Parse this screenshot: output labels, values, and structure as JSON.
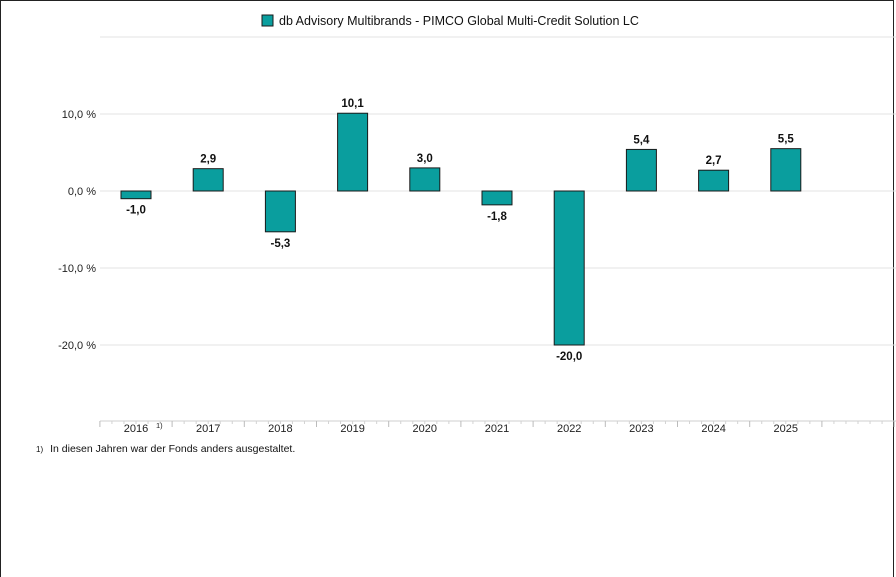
{
  "chart_data": {
    "type": "bar",
    "legend": {
      "label": "db Advisory Multibrands - PIMCO Global Multi-Credit Solution LC",
      "position": "top"
    },
    "categories": [
      "2016",
      "2017",
      "2018",
      "2019",
      "2020",
      "2021",
      "2022",
      "2023",
      "2024",
      "2025"
    ],
    "category_footnote_marks": [
      "1)",
      "",
      "",
      "",
      "",
      "",
      "",
      "",
      "",
      ""
    ],
    "values": [
      -1.0,
      2.9,
      -5.3,
      10.1,
      3.0,
      -1.8,
      -20.0,
      5.4,
      2.7,
      5.5
    ],
    "value_labels": [
      "-1,0",
      "2,9",
      "-5,3",
      "10,1",
      "3,0",
      "-1,8",
      "-20,0",
      "5,4",
      "2,7",
      "5,5"
    ],
    "yticks": [
      10,
      0,
      -10,
      -20
    ],
    "ytick_labels": [
      "10,0 %",
      "0,0 %",
      "-10,0 %",
      "-20,0 %"
    ],
    "ylim": [
      -30,
      20
    ],
    "grid": true,
    "bar_color": "#0a9e9e",
    "bar_stroke": "#1a1a1a"
  },
  "footnote": {
    "marker": "1)",
    "text": "In diesen Jahren war der Fonds anders ausgestaltet."
  }
}
